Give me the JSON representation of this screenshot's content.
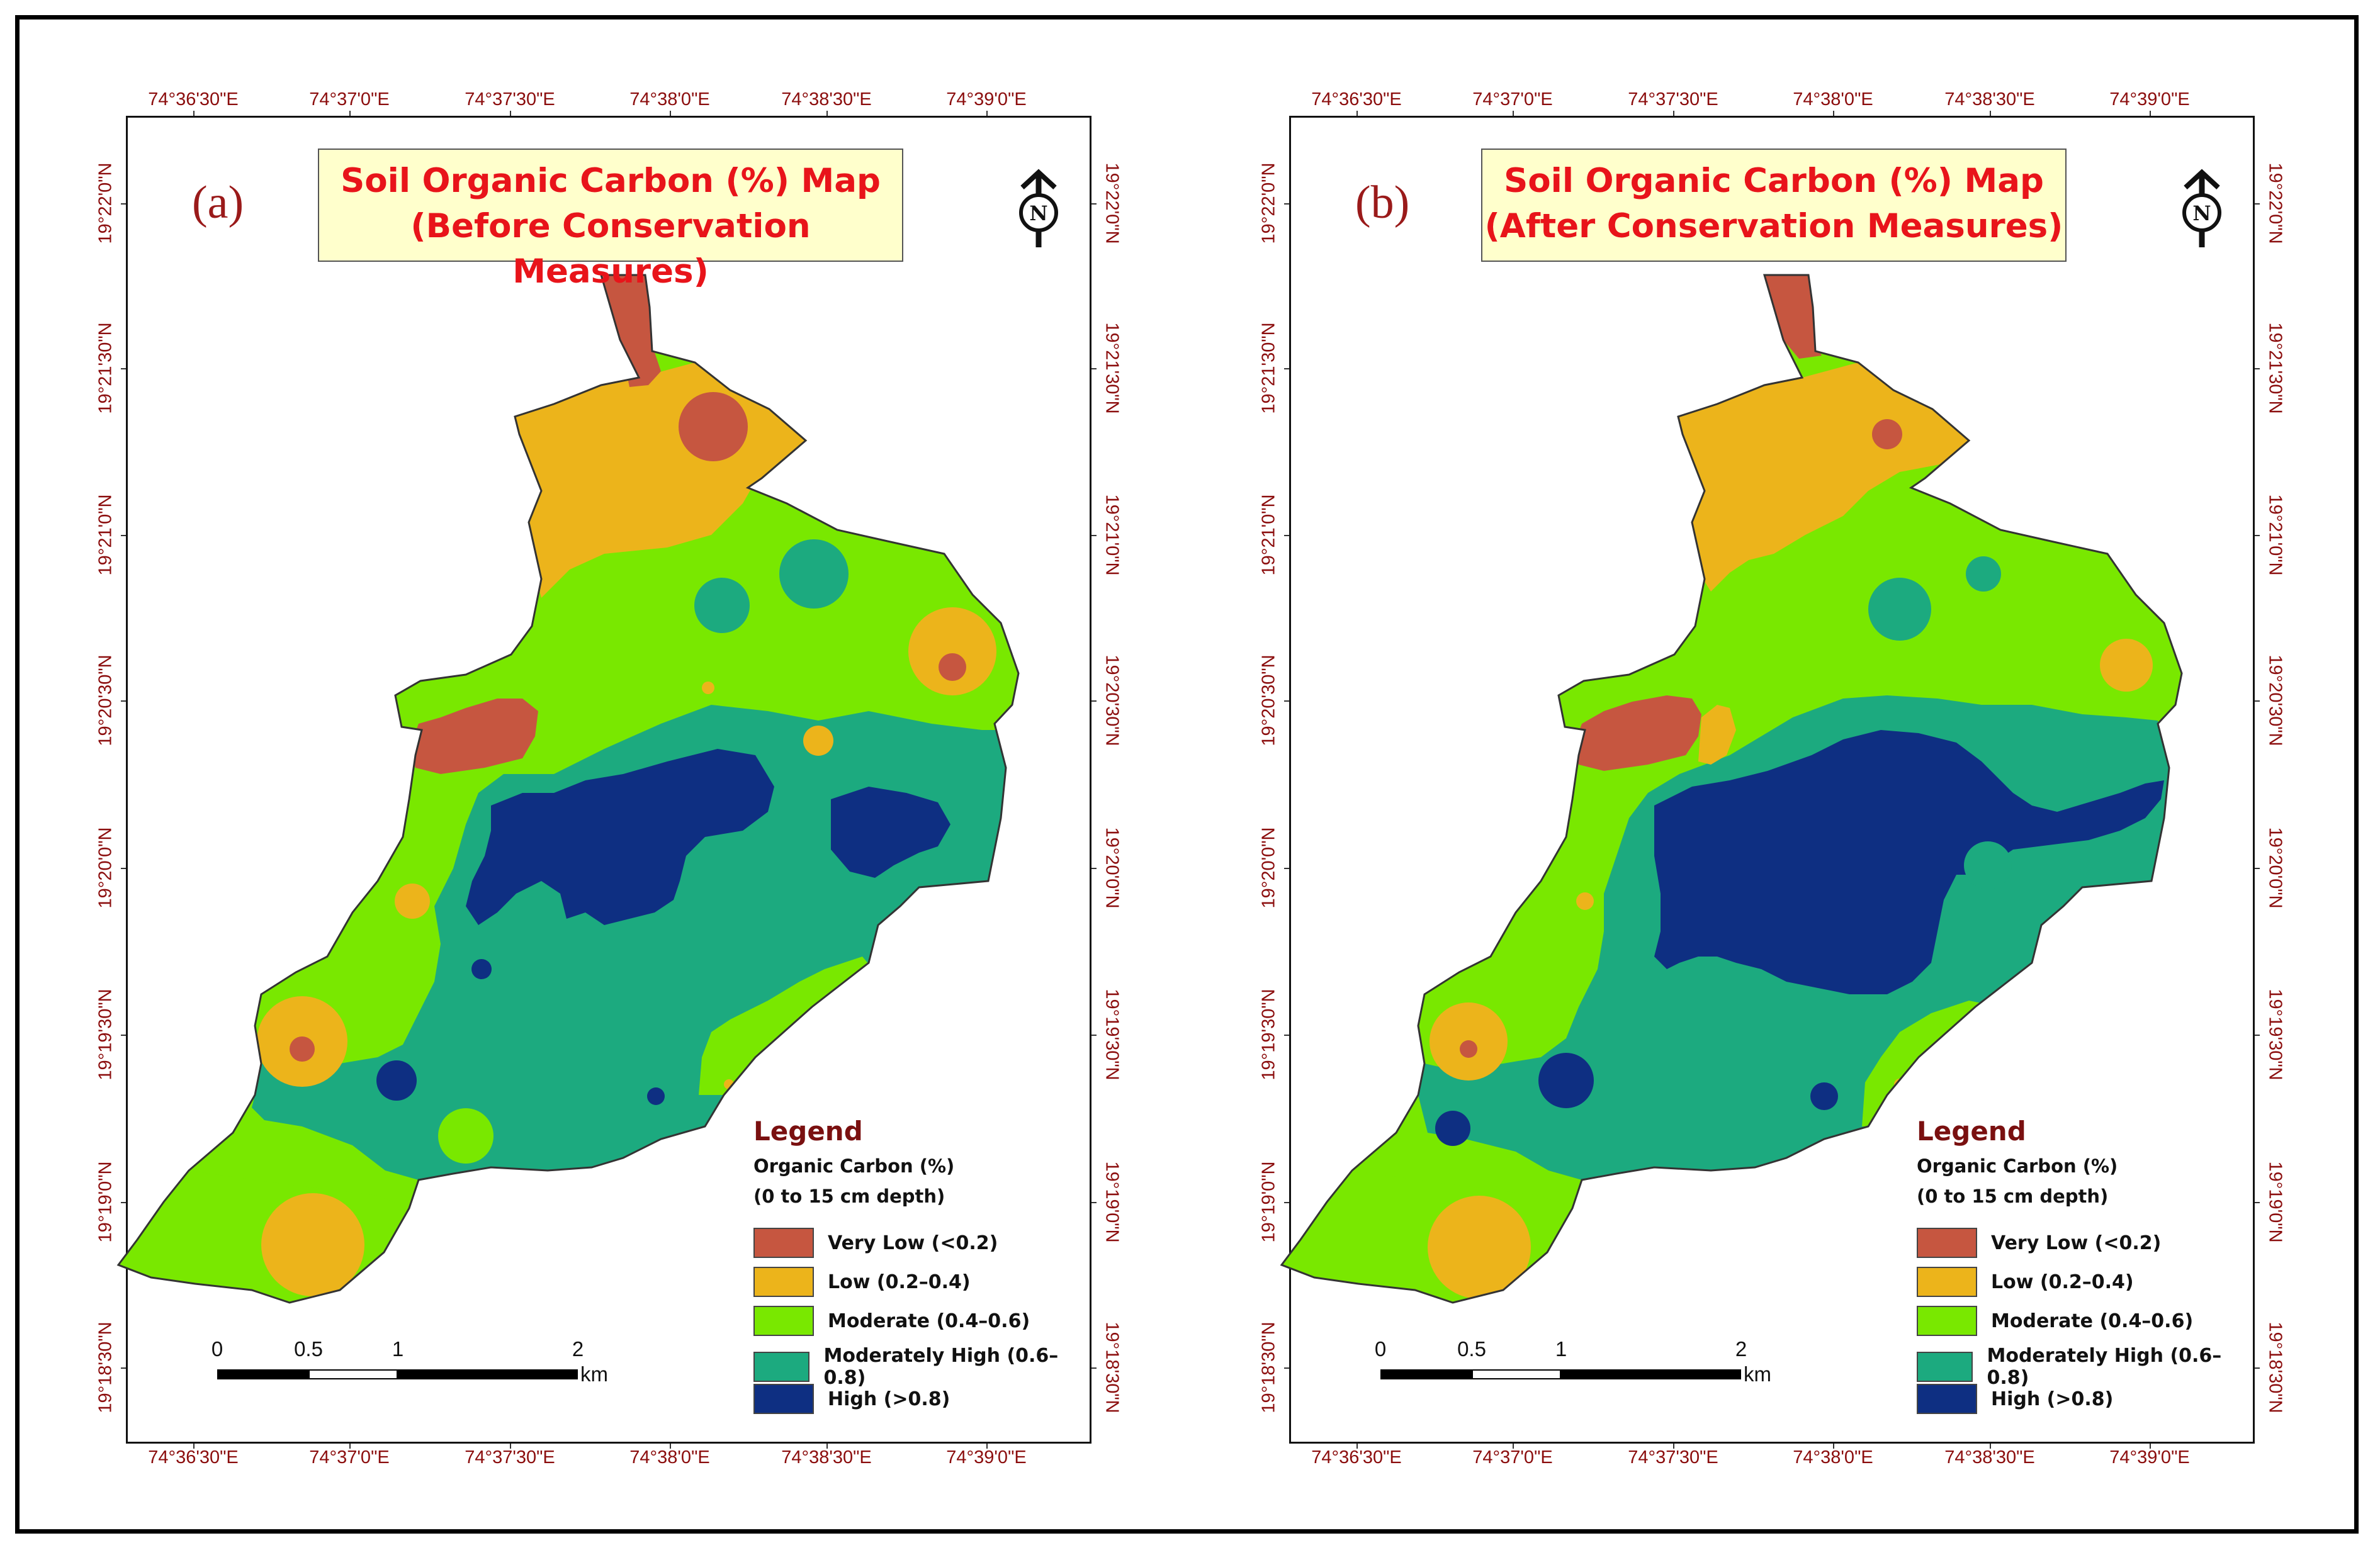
{
  "figure": {
    "panels": [
      {
        "id": "a",
        "letter": "(a)",
        "title_line1": "Soil Organic Carbon (%) Map",
        "title_line2": "(Before Conservation Measures)"
      },
      {
        "id": "b",
        "letter": "(b)",
        "title_line1": "Soil Organic Carbon (%) Map",
        "title_line2": "(After Conservation Measures)"
      }
    ],
    "longitude_ticks": [
      "74°36'30\"E",
      "74°37'0\"E",
      "74°37'30\"E",
      "74°38'0\"E",
      "74°38'30\"E",
      "74°39'0\"E"
    ],
    "latitude_ticks": [
      "19°22'0\"N",
      "19°21'30\"N",
      "19°21'0\"N",
      "19°20'30\"N",
      "19°20'0\"N",
      "19°19'30\"N",
      "19°19'0\"N",
      "19°18'30\"N"
    ],
    "legend": {
      "title": "Legend",
      "subtitle_line1": "Organic Carbon (%)",
      "subtitle_line2": "(0 to 15 cm depth)",
      "classes": [
        {
          "label": "Very Low (<0.2)",
          "color": "#c65640"
        },
        {
          "label": "Low (0.2–0.4)",
          "color": "#ecb41b"
        },
        {
          "label": "Moderate (0.4–0.6)",
          "color": "#79e800"
        },
        {
          "label": "Moderately High (0.6–0.8)",
          "color": "#1caa7f"
        },
        {
          "label": "High (>0.8)",
          "color": "#0e2f82"
        }
      ]
    },
    "scale_bar": {
      "labels": [
        "0",
        "0.5",
        "1",
        "2"
      ],
      "unit": "km"
    },
    "north_arrow": {
      "letter": "N",
      "icon": "north-arrow-icon"
    }
  }
}
